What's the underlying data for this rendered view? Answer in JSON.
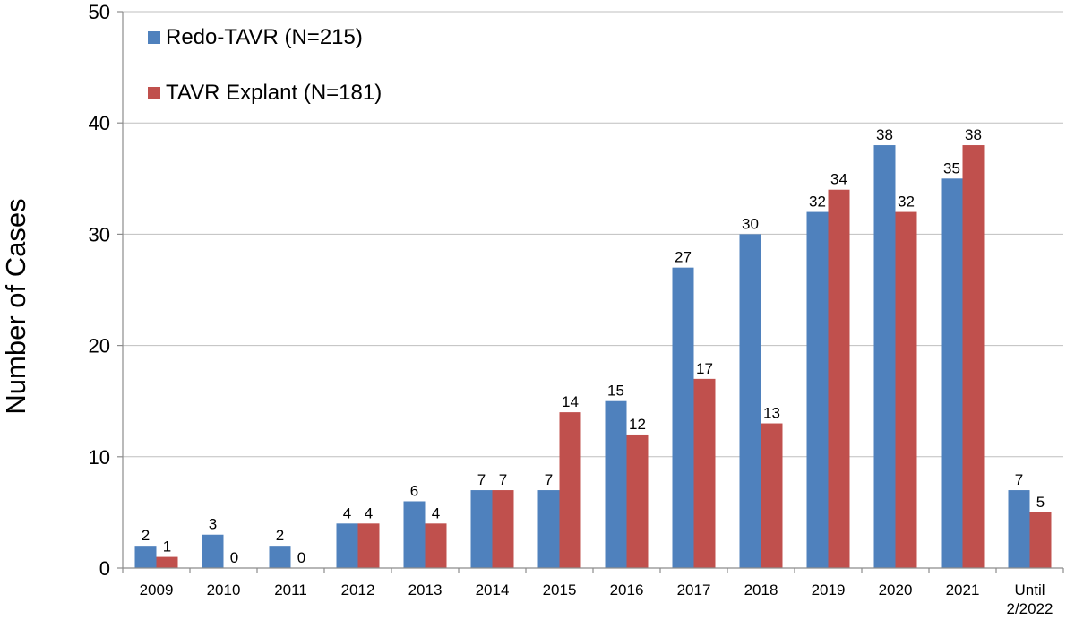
{
  "chart_data": {
    "type": "bar",
    "title": "",
    "xlabel": "",
    "ylabel": "Number of Cases",
    "ylim": [
      0,
      50
    ],
    "yticks": [
      0,
      10,
      20,
      30,
      40,
      50
    ],
    "grid": true,
    "legend_position": "top-left",
    "categories": [
      [
        "2009"
      ],
      [
        "2010"
      ],
      [
        "2011"
      ],
      [
        "2012"
      ],
      [
        "2013"
      ],
      [
        "2014"
      ],
      [
        "2015"
      ],
      [
        "2016"
      ],
      [
        "2017"
      ],
      [
        "2018"
      ],
      [
        "2019"
      ],
      [
        "2020"
      ],
      [
        "2021"
      ],
      [
        "Until",
        "2/2022"
      ]
    ],
    "series": [
      {
        "name": "Redo-TAVR (N=215)",
        "color": "#4f81bd",
        "values": [
          2,
          3,
          2,
          4,
          6,
          7,
          7,
          15,
          27,
          30,
          32,
          38,
          35,
          7
        ]
      },
      {
        "name": "TAVR Explant (N=181)",
        "color": "#c0504d",
        "values": [
          1,
          0,
          0,
          4,
          4,
          7,
          14,
          12,
          17,
          13,
          34,
          32,
          38,
          5
        ]
      }
    ]
  }
}
